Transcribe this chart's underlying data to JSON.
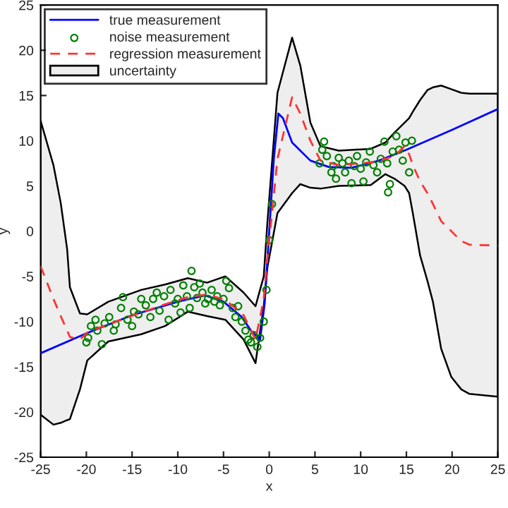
{
  "chart_data": {
    "type": "line",
    "xlabel": "x",
    "ylabel": "y",
    "xlim": [
      -25,
      25
    ],
    "ylim": [
      -25,
      25
    ],
    "xticks": [
      -25,
      -20,
      -15,
      -10,
      -5,
      0,
      5,
      10,
      15,
      20,
      25
    ],
    "yticks": [
      -25,
      -20,
      -15,
      -10,
      -5,
      0,
      5,
      10,
      15,
      20,
      25
    ],
    "grid": false,
    "legend": "top left",
    "series": [
      {
        "name": "true measurement",
        "color": "#0000ff",
        "line_style": "solid",
        "x": [
          -25,
          -20,
          -15,
          -10,
          -7,
          -5,
          -3,
          -2,
          -1,
          -0.5,
          0,
          0.5,
          1,
          1.5,
          2.5,
          4.5,
          6.5,
          9,
          12,
          15,
          20,
          25
        ],
        "values": [
          -13.5,
          -11.3,
          -9.3,
          -7.8,
          -7.1,
          -7.8,
          -9.5,
          -11,
          -12,
          -8,
          0,
          8,
          13,
          12.5,
          9.8,
          7.8,
          7.1,
          7,
          7.8,
          9,
          11.2,
          13.5
        ]
      },
      {
        "name": "noise measurement",
        "type": "scatter",
        "color": "#008000",
        "marker": "circle",
        "x": [
          -20,
          -19.8,
          -19.5,
          -19,
          -18.8,
          -18.3,
          -18,
          -17.5,
          -17,
          -16.8,
          -16.2,
          -16,
          -15.5,
          -15,
          -14.8,
          -14.3,
          -14,
          -13.5,
          -13,
          -12.7,
          -12.3,
          -12,
          -11.5,
          -11,
          -10.8,
          -10.3,
          -10,
          -9.7,
          -9.4,
          -9,
          -8.7,
          -8.5,
          -8.2,
          -7.9,
          -7.6,
          -7.3,
          -7,
          -6.7,
          -6.3,
          -6,
          -5.7,
          -5.4,
          -5,
          -4.7,
          -4.4,
          -4,
          -3.7,
          -3.4,
          -3,
          -2.6,
          -2.3,
          -2,
          -1.7,
          -1.3,
          -1,
          -0.6,
          -0.3,
          0,
          0.3,
          5.5,
          5.8,
          6,
          6.3,
          6.8,
          7,
          7.3,
          7.6,
          8,
          8.3,
          8.7,
          9,
          9.3,
          9.6,
          10,
          10.3,
          10.6,
          11,
          11.4,
          11.8,
          12.2,
          12.6,
          12.9,
          13,
          13.2,
          13.5,
          13.9,
          14.2,
          14.6,
          14.9,
          15.3,
          15.6
        ],
        "values": [
          -12.3,
          -11.8,
          -10.5,
          -9.8,
          -11,
          -12.5,
          -10.2,
          -9.5,
          -11,
          -10.3,
          -8.5,
          -7.3,
          -9.8,
          -10.5,
          -8.9,
          -9.2,
          -7.5,
          -8.2,
          -9.5,
          -7.5,
          -6.8,
          -8.8,
          -7.2,
          -9.8,
          -6.5,
          -8,
          -7.5,
          -9,
          -6,
          -7.2,
          -8.5,
          -4.4,
          -6.2,
          -7.4,
          -5.8,
          -6.8,
          -8,
          -7.5,
          -6.5,
          -7.8,
          -7.2,
          -8.2,
          -7.5,
          -5.5,
          -6.3,
          -8.5,
          -9.5,
          -8.3,
          -10,
          -11,
          -12,
          -12.3,
          -11.5,
          -12.8,
          -11.8,
          -10,
          -6.5,
          -1,
          3,
          7.5,
          9,
          9.9,
          8.3,
          6.5,
          7.2,
          5.8,
          8.1,
          7.5,
          6.5,
          7.8,
          5.3,
          7.2,
          8.3,
          6.9,
          5.5,
          7.6,
          8.8,
          7.3,
          6.5,
          8,
          9.9,
          7.5,
          4.3,
          5.2,
          8.8,
          10.5,
          9,
          7.8,
          9.8,
          6.5,
          10
        ]
      },
      {
        "name": "regression measurement",
        "color": "#ff3333",
        "line_style": "dashed",
        "x": [
          -25,
          -23.6,
          -22.8,
          -22.1,
          -21.8,
          -20.7,
          -19.9,
          -17.6,
          -14,
          -11.4,
          -8.9,
          -6.8,
          -4.8,
          -2.8,
          -1.5,
          -0.6,
          -0.2,
          0.9,
          2.5,
          3.4,
          4.5,
          5.6,
          7.6,
          11.1,
          12.7,
          13.7,
          14.8,
          15.3,
          15.7,
          16.5,
          17.3,
          17.9,
          18.8,
          19.9,
          21,
          21.9,
          25
        ],
        "values": [
          -3.9,
          -7.5,
          -9.4,
          -11,
          -11.7,
          -12,
          -11.2,
          -10.3,
          -9,
          -8.1,
          -7.3,
          -7,
          -7.6,
          -9.3,
          -12,
          -7.5,
          -3,
          8,
          14.8,
          13,
          10,
          7.8,
          7.3,
          7.6,
          8,
          8.3,
          9.4,
          8.5,
          7.3,
          5.5,
          4.2,
          3,
          1.1,
          0,
          -1.1,
          -1.5,
          -1.6
        ],
        "lower": [
          -20.3,
          -21.4,
          -21.2,
          -20.9,
          -20.8,
          -17.5,
          -14.3,
          -12.2,
          -11.4,
          -10.5,
          -8.9,
          -9.4,
          -9.8,
          -12,
          -14.6,
          -8.3,
          -4,
          2,
          4.2,
          5.2,
          4.8,
          4.7,
          5,
          5.1,
          6.3,
          5.8,
          5,
          4.2,
          2,
          -2.7,
          -5.5,
          -7.8,
          -13,
          -16.1,
          -17.5,
          -18,
          -18.3
        ],
        "upper": [
          12.2,
          7.3,
          3.1,
          -2,
          -6.2,
          -9.1,
          -9.2,
          -7.8,
          -6.5,
          -5.9,
          -5.2,
          -5.7,
          -5,
          -6.8,
          -8.3,
          -5,
          1,
          15.3,
          21.4,
          18.3,
          12,
          9.4,
          8.9,
          9.1,
          9.8,
          10.9,
          12,
          12.5,
          13.2,
          14.5,
          15.6,
          15.9,
          16.1,
          15.7,
          15.3,
          15.2,
          15.2
        ]
      },
      {
        "name": "uncertainty",
        "type": "area",
        "color": "#eeeeee"
      }
    ]
  }
}
